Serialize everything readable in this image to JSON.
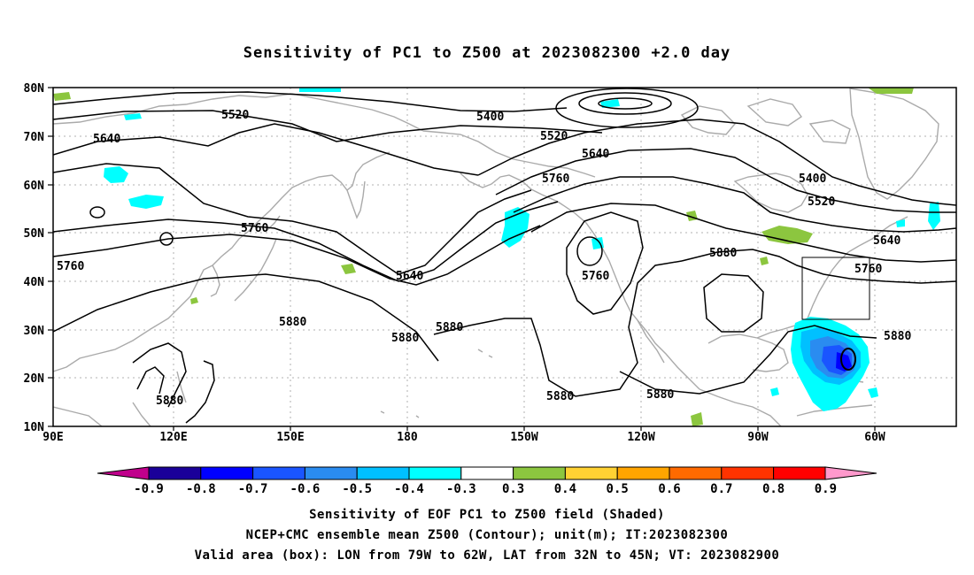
{
  "title": "Sensitivity of PC1 to Z500 at 2023082300 +2.0 day",
  "lat_ticks": [
    "80N",
    "70N",
    "60N",
    "50N",
    "40N",
    "30N",
    "20N",
    "10N"
  ],
  "lon_ticks": [
    "90E",
    "120E",
    "150E",
    "180",
    "150W",
    "120W",
    "90W",
    "60W"
  ],
  "contour_labels": [
    {
      "id": "5520-w",
      "text": "5520"
    },
    {
      "id": "5640-w",
      "text": "5640"
    },
    {
      "id": "5400",
      "text": "5400"
    },
    {
      "id": "5520-c",
      "text": "5520"
    },
    {
      "id": "5640-c",
      "text": "5640"
    },
    {
      "id": "5760-c",
      "text": "5760"
    },
    {
      "id": "5400-e",
      "text": "5400"
    },
    {
      "id": "5520-e",
      "text": "5520"
    },
    {
      "id": "5640-e",
      "text": "5640"
    },
    {
      "id": "5760-w",
      "text": "5760"
    },
    {
      "id": "5760-w2",
      "text": "5760"
    },
    {
      "id": "5640-p",
      "text": "5640"
    },
    {
      "id": "5760-p",
      "text": "5760"
    },
    {
      "id": "5880-na",
      "text": "5880"
    },
    {
      "id": "5760-e2",
      "text": "5760"
    },
    {
      "id": "5880-p1",
      "text": "5880"
    },
    {
      "id": "5880-p2",
      "text": "5880"
    },
    {
      "id": "5880-p3",
      "text": "5880"
    },
    {
      "id": "5880-e",
      "text": "5880"
    },
    {
      "id": "5880-sw",
      "text": "5880"
    },
    {
      "id": "5880-s1",
      "text": "5880"
    },
    {
      "id": "5880-s2",
      "text": "5880"
    }
  ],
  "colorbar": {
    "labels": [
      "-0.9",
      "-0.8",
      "-0.7",
      "-0.6",
      "-0.5",
      "-0.4",
      "-0.3",
      "0.3",
      "0.4",
      "0.5",
      "0.6",
      "0.7",
      "0.8",
      "0.9"
    ],
    "colors": [
      "#1a0099",
      "#0000ff",
      "#1a55ff",
      "#2a8cf0",
      "#00c0ff",
      "#00ffff",
      "#ffffff",
      "#8cc63f",
      "#ffd233",
      "#ffa500",
      "#ff6a00",
      "#ff3300",
      "#ff0000"
    ],
    "low_end_color": "#c0008c",
    "high_end_color": "#ff99cc"
  },
  "caption_lines": [
    "Sensitivity of EOF PC1 to Z500 field (Shaded)",
    "NCEP+CMC ensemble mean Z500 (Contour); unit(m); IT:2023082300",
    "Valid area (box): LON from 79W to 62W, LAT from 32N to 45N; VT: 2023082900"
  ],
  "valid_box": {
    "lon_min": -79,
    "lon_max": -62,
    "lat_min": 32,
    "lat_max": 45
  }
}
